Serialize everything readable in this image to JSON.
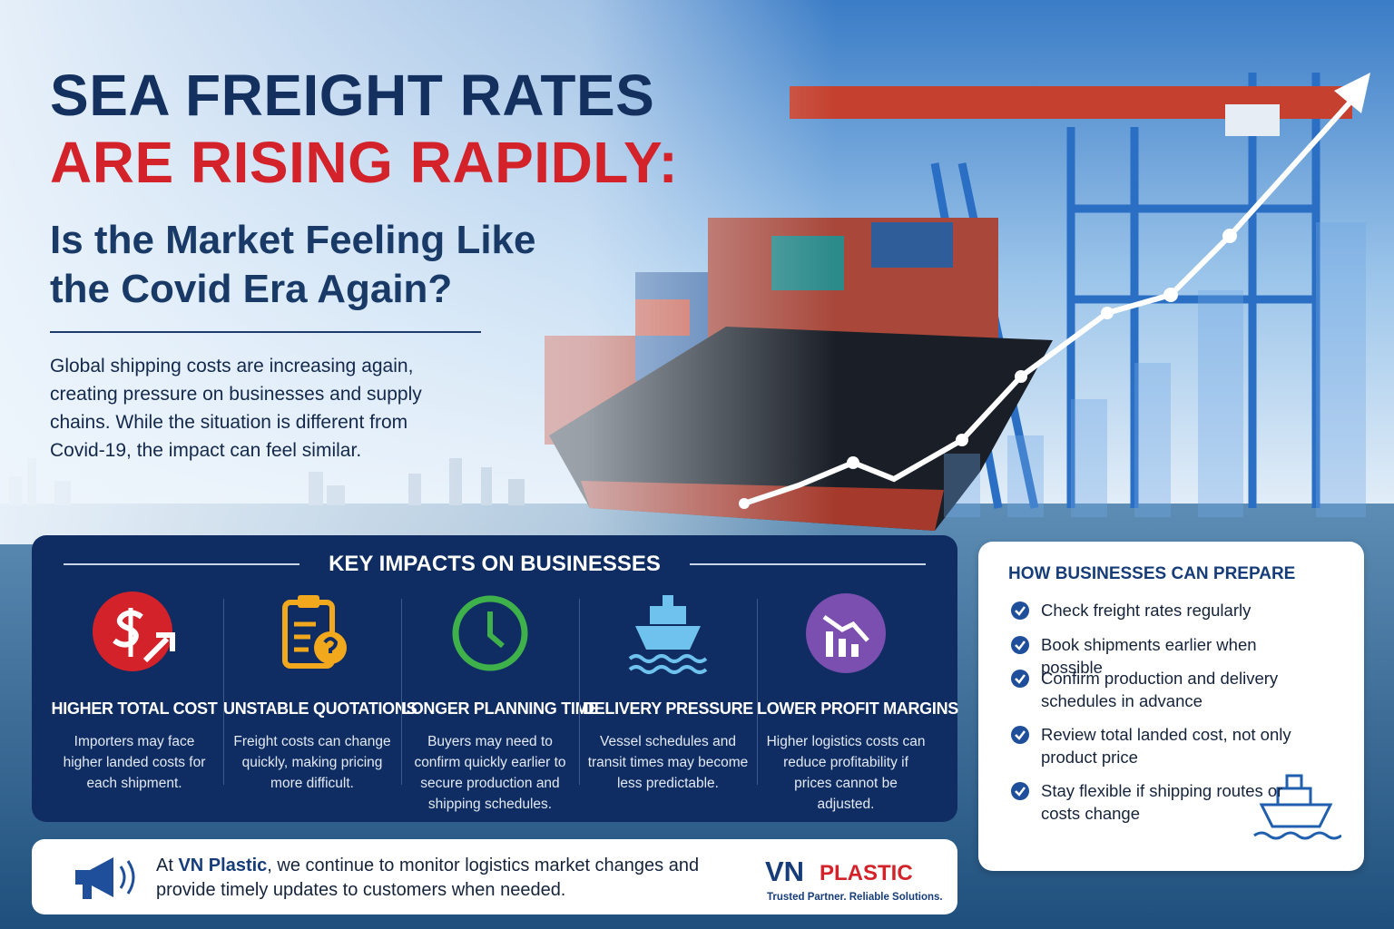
{
  "header": {
    "title_line1": "SEA FREIGHT RATES",
    "title_line2": "ARE RISING RAPIDLY:",
    "subtitle_line1": "Is the Market Feeling Like",
    "subtitle_line2": "the Covid Era Again?",
    "intro": "Global shipping costs are increasing again, creating pressure on businesses and supply chains. While the situation is different from Covid-19, the impact can feel similar."
  },
  "impacts": {
    "title": "KEY IMPACTS ON BUSINESSES",
    "items": [
      {
        "title": "HIGHER TOTAL COST",
        "text": "Importers may face higher landed costs for each shipment."
      },
      {
        "title": "UNSTABLE QUOTATIONS",
        "text": "Freight costs can change quickly, making pricing more difficult."
      },
      {
        "title": "LONGER PLANNING TIME",
        "text": "Buyers may need to confirm quickly earlier to secure production and shipping schedules."
      },
      {
        "title": "DELIVERY PRESSURE",
        "text": "Vessel schedules and transit times may become less predictable."
      },
      {
        "title": "LOWER PROFIT MARGINS",
        "text": "Higher logistics costs can reduce profitability if prices cannot be adjusted."
      }
    ]
  },
  "prepare": {
    "title": "HOW BUSINESSES CAN PREPARE",
    "items": [
      "Check freight rates regularly",
      "Book shipments earlier when possible",
      "Confirm production and delivery schedules in advance",
      "Review total landed cost, not only product price",
      "Stay flexible if shipping routes or costs change"
    ]
  },
  "footer": {
    "message": [
      "At",
      "VN Plastic",
      ", we continue to monitor logistics market changes and provide timely updates to customers when needed."
    ],
    "logo": {
      "vn": "VN",
      "plastic": "PLASTIC",
      "tagline": "Trusted Partner. Reliable Solutions."
    }
  }
}
